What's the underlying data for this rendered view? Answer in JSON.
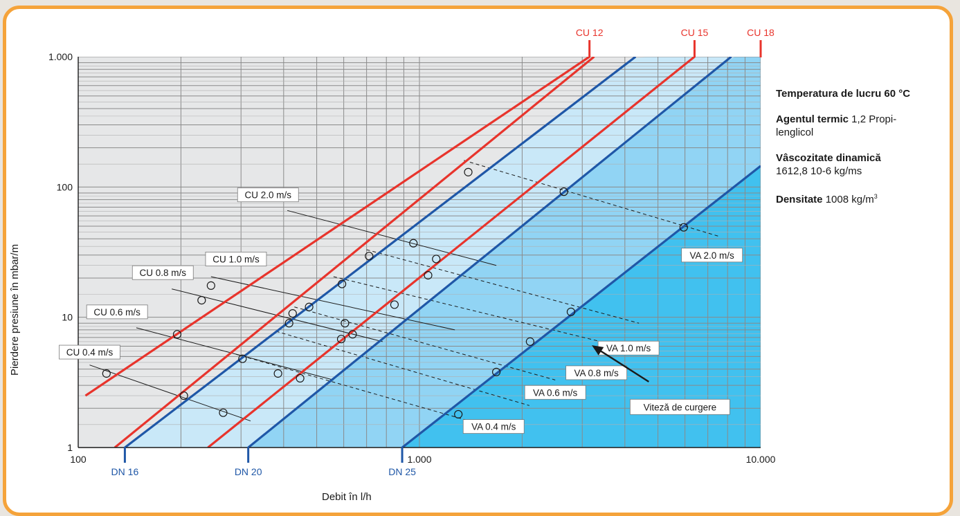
{
  "chart_data": {
    "type": "line",
    "xlabel": "Debit în l/h",
    "ylabel": "Pierdere presiune în mbar/m",
    "x_scale": "log",
    "y_scale": "log",
    "xlim": [
      100,
      10000
    ],
    "ylim": [
      1,
      1000
    ],
    "grid": true,
    "x_tick_labels": [
      {
        "value": 100,
        "label": "100"
      },
      {
        "value": 1000,
        "label": "1.000"
      },
      {
        "value": 10000,
        "label": "10.000"
      }
    ],
    "y_tick_labels": [
      {
        "value": 1,
        "label": "1"
      },
      {
        "value": 10,
        "label": "10"
      },
      {
        "value": 100,
        "label": "100"
      },
      {
        "value": 1000,
        "label": "1.000"
      }
    ],
    "pipe_series": [
      {
        "name": "CU 12",
        "color": "#e8342c",
        "points": [
          [
            105,
            2.5
          ],
          [
            3150,
            1000
          ]
        ]
      },
      {
        "name": "CU 15",
        "color": "#e8342c",
        "points": [
          [
            240,
            1
          ],
          [
            6400,
            1000
          ]
        ]
      },
      {
        "name": "CU 18",
        "color": "#e8342c",
        "points": [
          [
            128,
            1
          ],
          [
            3250,
            1000
          ]
        ]
      },
      {
        "name": "DN 16",
        "color": "#1f57a7",
        "points": [
          [
            137,
            1
          ],
          [
            4300,
            1000
          ]
        ]
      },
      {
        "name": "DN 20",
        "color": "#1f57a7",
        "points": [
          [
            315,
            1
          ],
          [
            8200,
            1000
          ]
        ]
      },
      {
        "name": "DN 25",
        "color": "#1f57a7",
        "points": [
          [
            890,
            1
          ],
          [
            10000,
            145
          ]
        ]
      }
    ],
    "bottom_labels": [
      {
        "label": "DN 16",
        "x": 137
      },
      {
        "label": "DN 20",
        "x": 315
      },
      {
        "label": "DN 25",
        "x": 890
      }
    ],
    "top_labels": [
      {
        "label": "CU 12",
        "x": 3150
      },
      {
        "label": "CU 15",
        "x": 6400
      },
      {
        "label": "CU 18",
        "x": 10000
      }
    ],
    "velocity_series": [
      {
        "name": "CU 0.4 m/s",
        "style": "solid",
        "points": [
          [
            108,
            4.3
          ],
          [
            320,
            1.6
          ]
        ]
      },
      {
        "name": "CU 0.6 m/s",
        "style": "solid",
        "points": [
          [
            148,
            8.3
          ],
          [
            560,
            3.3
          ]
        ]
      },
      {
        "name": "CU 0.8 m/s",
        "style": "solid",
        "points": [
          [
            188,
            16.5
          ],
          [
            780,
            6.5
          ]
        ]
      },
      {
        "name": "CU 1.0 m/s",
        "style": "solid",
        "points": [
          [
            245,
            20.5
          ],
          [
            1270,
            8.0
          ]
        ]
      },
      {
        "name": "CU 2.0 m/s",
        "style": "solid",
        "points": [
          [
            410,
            66
          ],
          [
            1680,
            25
          ]
        ]
      },
      {
        "name": "VA 0.4 m/s",
        "style": "dashed",
        "points": [
          [
            290,
            5.2
          ],
          [
            1400,
            1.6
          ]
        ]
      },
      {
        "name": "VA 0.6 m/s",
        "style": "dashed",
        "points": [
          [
            380,
            7.8
          ],
          [
            2100,
            2.1
          ]
        ]
      },
      {
        "name": "VA 0.8 m/s",
        "style": "dashed",
        "points": [
          [
            430,
            12.0
          ],
          [
            2500,
            3.3
          ]
        ]
      },
      {
        "name": "VA 1.0 m/s",
        "style": "dashed",
        "points": [
          [
            560,
            20.5
          ],
          [
            3400,
            6.5
          ]
        ]
      },
      {
        "name": "VA 2.0 m/s",
        "style": "dashed",
        "points": [
          [
            700,
            33
          ],
          [
            4400,
            9.0
          ]
        ]
      },
      {
        "name": "VA 2.0 m/s upper",
        "style": "dashed",
        "points": [
          [
            1350,
            160
          ],
          [
            7500,
            42
          ]
        ]
      }
    ],
    "markers": [
      [
        121,
        3.7
      ],
      [
        195,
        7.4
      ],
      [
        230,
        13.5
      ],
      [
        245,
        17.5
      ],
      [
        204,
        2.5
      ],
      [
        266,
        1.85
      ],
      [
        303,
        4.8
      ],
      [
        385,
        3.7
      ],
      [
        447,
        3.4
      ],
      [
        415,
        9.0
      ],
      [
        425,
        10.7
      ],
      [
        475,
        12.0
      ],
      [
        590,
        6.8
      ],
      [
        605,
        9.0
      ],
      [
        637,
        7.4
      ],
      [
        593,
        18.0
      ],
      [
        712,
        29.5
      ],
      [
        845,
        12.5
      ],
      [
        960,
        37.0
      ],
      [
        1060,
        21.0
      ],
      [
        1120,
        28.0
      ],
      [
        1300,
        1.8
      ],
      [
        1390,
        130
      ],
      [
        1680,
        3.8
      ],
      [
        2110,
        6.5
      ],
      [
        2650,
        92
      ],
      [
        2780,
        11.0
      ],
      [
        5950,
        49
      ]
    ],
    "velocity_labels": [
      {
        "text": "CU 2.0 m/s",
        "x": 360,
        "y": 87
      },
      {
        "text": "CU 1.0 m/s",
        "x": 290,
        "y": 28
      },
      {
        "text": "CU 0.8 m/s",
        "x": 177,
        "y": 22
      },
      {
        "text": "CU 0.6 m/s",
        "x": 130,
        "y": 11
      },
      {
        "text": "CU 0.4 m/s",
        "x": 108,
        "y": 5.4
      },
      {
        "text": "VA 2.0 m/s",
        "x": 7200,
        "y": 30
      },
      {
        "text": "VA 1.0 m/s",
        "x": 4100,
        "y": 5.8
      },
      {
        "text": "VA 0.8 m/s",
        "x": 3300,
        "y": 3.75
      },
      {
        "text": "VA 0.6 m/s",
        "x": 2500,
        "y": 2.65
      },
      {
        "text": "VA 0.4 m/s",
        "x": 1650,
        "y": 1.45
      }
    ],
    "annotation": {
      "text": "Viteză de curgere",
      "arrow_from": [
        4700,
        3.2
      ],
      "arrow_to": [
        3200,
        6.1
      ],
      "box": [
        5800,
        2.05
      ]
    },
    "region_colors": {
      "chart_background": "#e6e7e8",
      "zone_1": "#c9e8f8",
      "zone_2": "#91d4f4",
      "zone_3": "#41c1ef",
      "red": "#e8342c",
      "blue": "#1f57a7"
    }
  },
  "info_panel": {
    "temp_label": "Temperatura de lucru 60 °C",
    "agent_label": "Agentul termic",
    "agent_value": " 1,2 Propi-lenglicol",
    "viscosity_label": "Vâscozitate dinamică",
    "viscosity_value": "1612,8 10-6 kg/ms",
    "density_label": "Densitate",
    "density_value": " 1008 kg/m",
    "density_unit_sup": "3"
  }
}
